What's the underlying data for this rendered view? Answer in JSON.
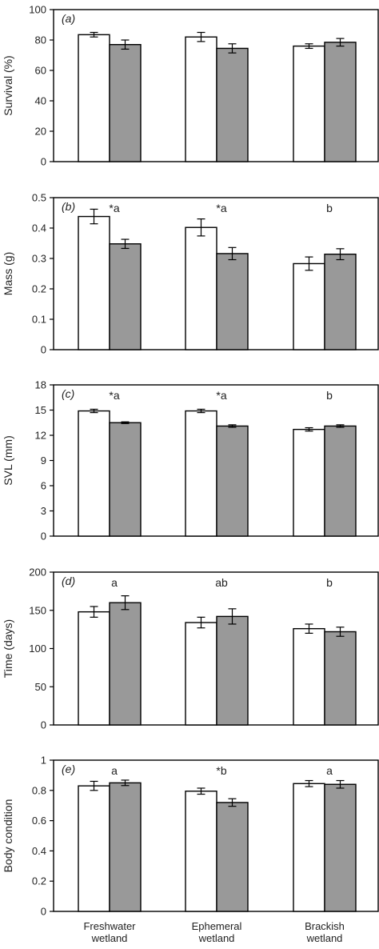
{
  "chart_data": [
    {
      "type": "bar",
      "panel_label": "(a)",
      "ylabel": "Survival (%)",
      "ylim": [
        0,
        100
      ],
      "yticks": [
        0,
        20,
        40,
        60,
        80,
        100
      ],
      "categories": [
        "Freshwater wetland",
        "Ephemeral wetland",
        "Brackish wetland"
      ],
      "series": [
        {
          "color": "#ffffff",
          "values": [
            83.5,
            82,
            76
          ],
          "errors": [
            1.5,
            3,
            1.5
          ]
        },
        {
          "color": "#999999",
          "values": [
            77,
            74.5,
            78.5
          ],
          "errors": [
            3,
            3,
            2.5
          ]
        }
      ],
      "annotations": [
        "",
        "",
        ""
      ]
    },
    {
      "type": "bar",
      "panel_label": "(b)",
      "ylabel": "Mass (g)",
      "ylim": [
        0,
        0.5
      ],
      "yticks": [
        0,
        0.1,
        0.2,
        0.3,
        0.4,
        0.5
      ],
      "categories": [
        "Freshwater wetland",
        "Ephemeral wetland",
        "Brackish wetland"
      ],
      "series": [
        {
          "color": "#ffffff",
          "values": [
            0.438,
            0.402,
            0.283
          ],
          "errors": [
            0.024,
            0.028,
            0.022
          ]
        },
        {
          "color": "#999999",
          "values": [
            0.348,
            0.316,
            0.314
          ],
          "errors": [
            0.015,
            0.02,
            0.018
          ]
        }
      ],
      "annotations": [
        "*a",
        "*a",
        "b"
      ]
    },
    {
      "type": "bar",
      "panel_label": "(c)",
      "ylabel": "SVL (mm)",
      "ylim": [
        0,
        18
      ],
      "yticks": [
        0,
        3,
        6,
        9,
        12,
        15,
        18
      ],
      "categories": [
        "Freshwater wetland",
        "Ephemeral wetland",
        "Brackish wetland"
      ],
      "series": [
        {
          "color": "#ffffff",
          "values": [
            14.9,
            14.9,
            12.7
          ],
          "errors": [
            0.2,
            0.2,
            0.2
          ]
        },
        {
          "color": "#999999",
          "values": [
            13.5,
            13.1,
            13.1
          ],
          "errors": [
            0.1,
            0.15,
            0.15
          ]
        }
      ],
      "annotations": [
        "*a",
        "*a",
        "b"
      ]
    },
    {
      "type": "bar",
      "panel_label": "(d)",
      "ylabel": "Time (days)",
      "ylim": [
        0,
        200
      ],
      "yticks": [
        0,
        50,
        100,
        150,
        200
      ],
      "categories": [
        "Freshwater wetland",
        "Ephemeral wetland",
        "Brackish wetland"
      ],
      "series": [
        {
          "color": "#ffffff",
          "values": [
            148,
            134,
            126
          ],
          "errors": [
            7,
            7,
            6
          ]
        },
        {
          "color": "#999999",
          "values": [
            160,
            142,
            122
          ],
          "errors": [
            9,
            10,
            6
          ]
        }
      ],
      "annotations": [
        "a",
        "ab",
        "b"
      ]
    },
    {
      "type": "bar",
      "panel_label": "(e)",
      "ylabel": "Body condition",
      "ylim": [
        0,
        1.0
      ],
      "yticks": [
        0,
        0.2,
        0.4,
        0.6,
        0.8,
        1.0
      ],
      "categories": [
        "Freshwater wetland",
        "Ephemeral wetland",
        "Brackish wetland"
      ],
      "series": [
        {
          "color": "#ffffff",
          "values": [
            0.83,
            0.795,
            0.845
          ],
          "errors": [
            0.03,
            0.02,
            0.02
          ]
        },
        {
          "color": "#999999",
          "values": [
            0.85,
            0.72,
            0.84
          ],
          "errors": [
            0.018,
            0.025,
            0.025
          ]
        }
      ],
      "annotations": [
        "a",
        "*b",
        "a"
      ]
    }
  ],
  "x_axis": {
    "categories": [
      {
        "line1": "Freshwater",
        "line2": "wetland"
      },
      {
        "line1": "Ephemeral",
        "line2": "wetland"
      },
      {
        "line1": "Brackish",
        "line2": "wetland"
      }
    ]
  }
}
